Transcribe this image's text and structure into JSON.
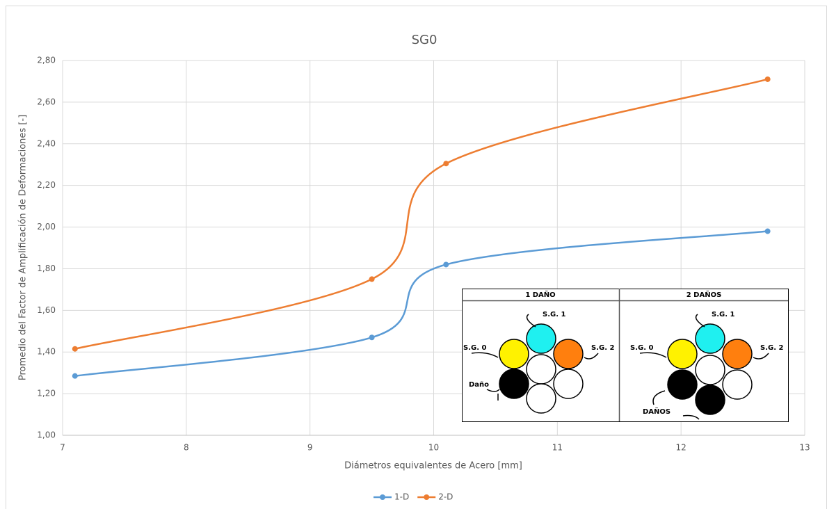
{
  "chart_data": {
    "type": "line",
    "title": "SG0",
    "x_label": "Diámetros equivalentes de Acero [mm]",
    "y_label": "Promedio del Factor de Amplificación de Deformaciones [-]",
    "smooth": true,
    "grid": true,
    "legend": "bottom",
    "xlim": [
      7,
      13
    ],
    "xticks": [
      7,
      8,
      9,
      10,
      11,
      12,
      13
    ],
    "ylim": [
      1.0,
      2.8
    ],
    "yticks": [
      {
        "value": 1.0,
        "label": "1,00"
      },
      {
        "value": 1.2,
        "label": "1,20"
      },
      {
        "value": 1.4,
        "label": "1,40"
      },
      {
        "value": 1.6,
        "label": "1,60"
      },
      {
        "value": 1.8,
        "label": "1,80"
      },
      {
        "value": 2.0,
        "label": "2,00"
      },
      {
        "value": 2.2,
        "label": "2,20"
      },
      {
        "value": 2.4,
        "label": "2,40"
      },
      {
        "value": 2.6,
        "label": "2,60"
      },
      {
        "value": 2.8,
        "label": "2,80"
      }
    ],
    "x": [
      7.1,
      9.5,
      10.1,
      12.7
    ],
    "series": [
      {
        "name": "1-D",
        "color": "#5b9bd5",
        "values": [
          1.285,
          1.47,
          1.82,
          1.98
        ]
      },
      {
        "name": "2-D",
        "color": "#ed7d31",
        "values": [
          1.415,
          1.75,
          2.305,
          2.71
        ]
      }
    ]
  },
  "inset": {
    "panels": [
      {
        "title": "1 DAÑO",
        "labels": [
          "S.G. 1",
          "S.G. 0",
          "S.G. 2",
          "Daño"
        ]
      },
      {
        "title": "2 DAÑOS",
        "labels": [
          "S.G. 1",
          "S.G. 0",
          "S.G. 2",
          "DAÑOS"
        ]
      }
    ]
  }
}
